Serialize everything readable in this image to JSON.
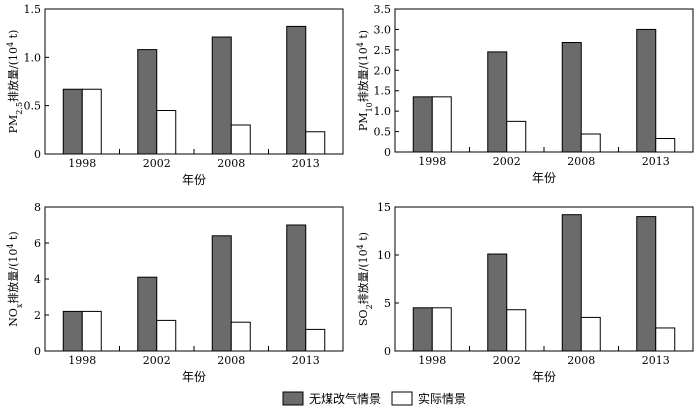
{
  "legend": {
    "items": [
      {
        "label": "无煤改气情景",
        "color": "#6b6b6b"
      },
      {
        "label": "实际情景",
        "color": "#ffffff"
      }
    ]
  },
  "chart_data": [
    {
      "type": "bar",
      "categories": [
        "1998",
        "2002",
        "2008",
        "2013"
      ],
      "xlabel": "年份",
      "ylabel_parts": [
        "PM",
        "2.5",
        "排放量/(10",
        "4",
        " t)"
      ],
      "ylim": [
        0,
        1.5
      ],
      "yticks": [
        "0",
        "0.5",
        "1.0",
        "1.5"
      ],
      "series": [
        {
          "name": "无煤改气情景",
          "values": [
            0.67,
            1.08,
            1.21,
            1.32
          ]
        },
        {
          "name": "实际情景",
          "values": [
            0.67,
            0.45,
            0.3,
            0.23
          ]
        }
      ]
    },
    {
      "type": "bar",
      "categories": [
        "1998",
        "2002",
        "2008",
        "2013"
      ],
      "xlabel": "年份",
      "ylabel_parts": [
        "PM",
        "10",
        "排放量/(10",
        "4",
        " t)"
      ],
      "ylim": [
        0,
        3.5
      ],
      "yticks": [
        "0",
        "0.5",
        "1.0",
        "1.5",
        "2.0",
        "2.5",
        "3.0",
        "3.5"
      ],
      "series": [
        {
          "name": "无煤改气情景",
          "values": [
            1.35,
            2.45,
            2.68,
            3.0
          ]
        },
        {
          "name": "实际情景",
          "values": [
            1.35,
            0.75,
            0.44,
            0.33
          ]
        }
      ]
    },
    {
      "type": "bar",
      "categories": [
        "1998",
        "2002",
        "2008",
        "2013"
      ],
      "xlabel": "年份",
      "ylabel_parts": [
        "NO",
        "x",
        "排放量/(10",
        "4",
        " t)"
      ],
      "ylim": [
        0,
        8
      ],
      "yticks": [
        "0",
        "2",
        "4",
        "6",
        "8"
      ],
      "series": [
        {
          "name": "无煤改气情景",
          "values": [
            2.2,
            4.1,
            6.4,
            7.0
          ]
        },
        {
          "name": "实际情景",
          "values": [
            2.2,
            1.7,
            1.6,
            1.2
          ]
        }
      ]
    },
    {
      "type": "bar",
      "categories": [
        "1998",
        "2002",
        "2008",
        "2013"
      ],
      "xlabel": "年份",
      "ylabel_parts": [
        "SO",
        "2",
        "排放量/(10",
        "4",
        " t)"
      ],
      "ylim": [
        0,
        15
      ],
      "yticks": [
        "0",
        "5",
        "10",
        "15"
      ],
      "series": [
        {
          "name": "无煤改气情景",
          "values": [
            4.5,
            10.1,
            14.2,
            14.0
          ]
        },
        {
          "name": "实际情景",
          "values": [
            4.5,
            4.3,
            3.5,
            2.4
          ]
        }
      ]
    }
  ]
}
